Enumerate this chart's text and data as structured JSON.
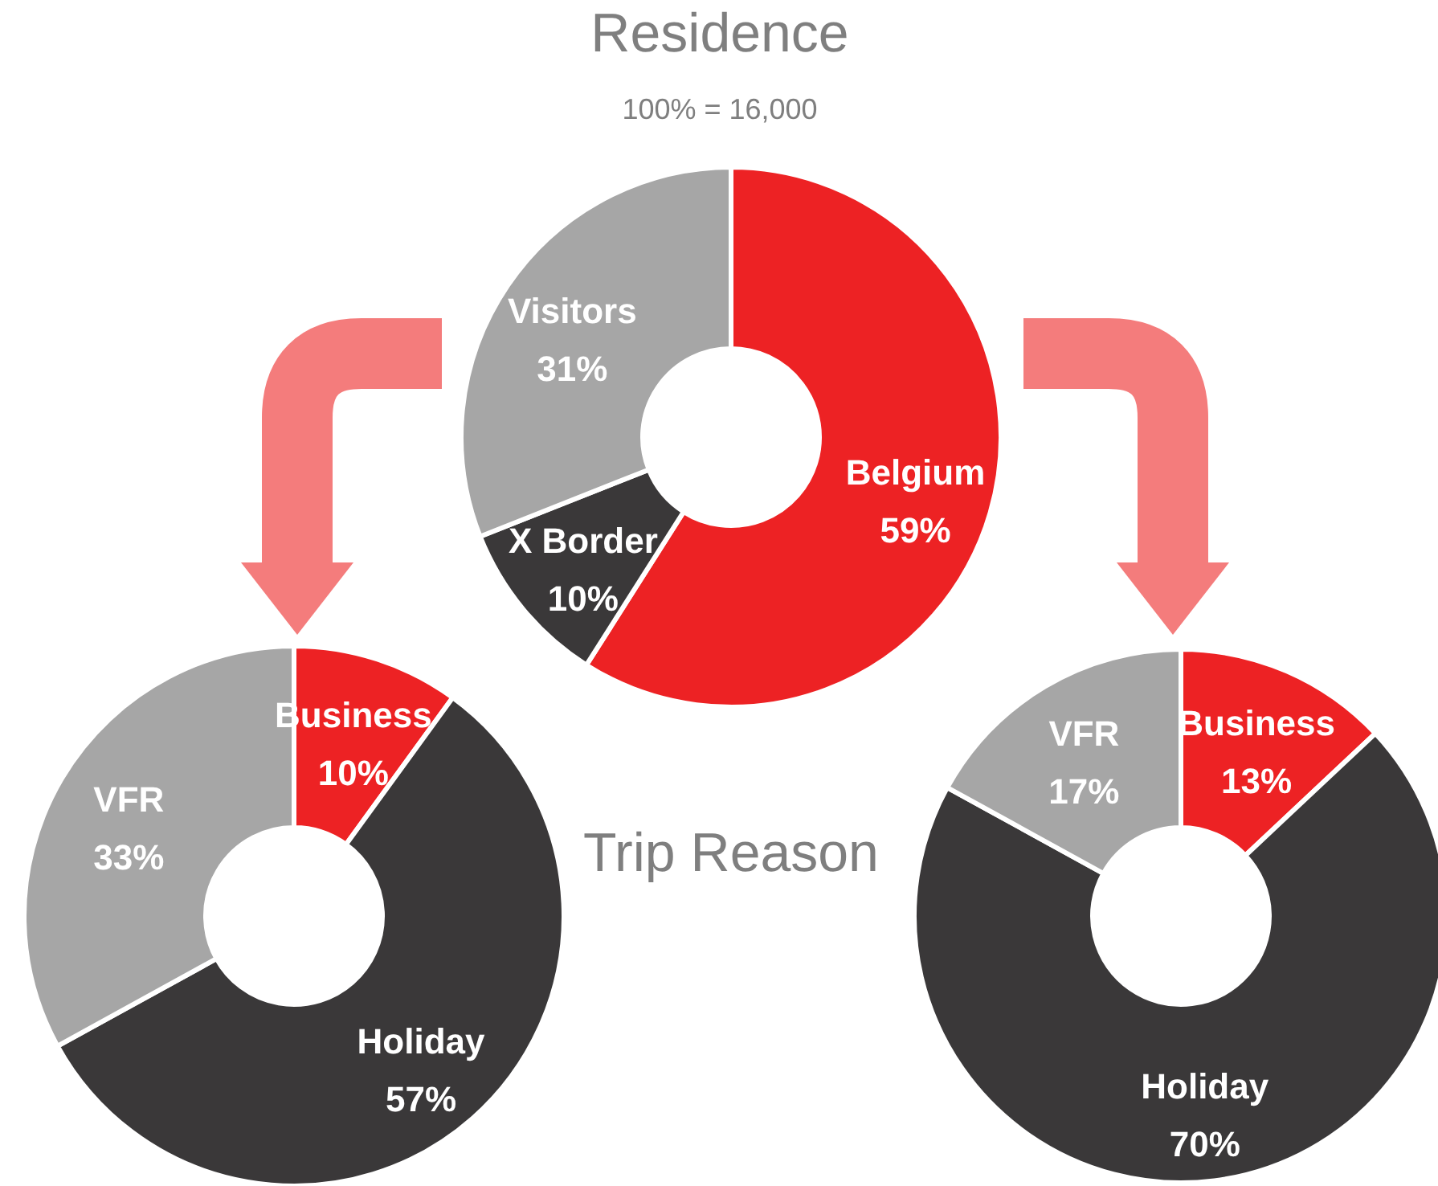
{
  "chart_data": [
    {
      "type": "donut",
      "title": "Residence",
      "subtitle": "100% = 16,000",
      "categories": [
        "Belgium",
        "X Border",
        "Visitors"
      ],
      "values": [
        59,
        10,
        31
      ],
      "colors": [
        "#ed2224",
        "#3a3839",
        "#a6a6a6"
      ],
      "value_labels": [
        "59%",
        "10%",
        "31%"
      ]
    },
    {
      "type": "donut",
      "title": "Trip Reason",
      "categories": [
        "Business",
        "Holiday",
        "VFR"
      ],
      "values": [
        10,
        57,
        33
      ],
      "colors": [
        "#ed2224",
        "#3a3839",
        "#a6a6a6"
      ],
      "value_labels": [
        "10%",
        "57%",
        "33%"
      ]
    },
    {
      "type": "donut",
      "categories": [
        "Business",
        "Holiday",
        "VFR"
      ],
      "values": [
        13,
        70,
        17
      ],
      "colors": [
        "#ed2224",
        "#3a3839",
        "#a6a6a6"
      ],
      "value_labels": [
        "13%",
        "70%",
        "17%"
      ]
    }
  ]
}
